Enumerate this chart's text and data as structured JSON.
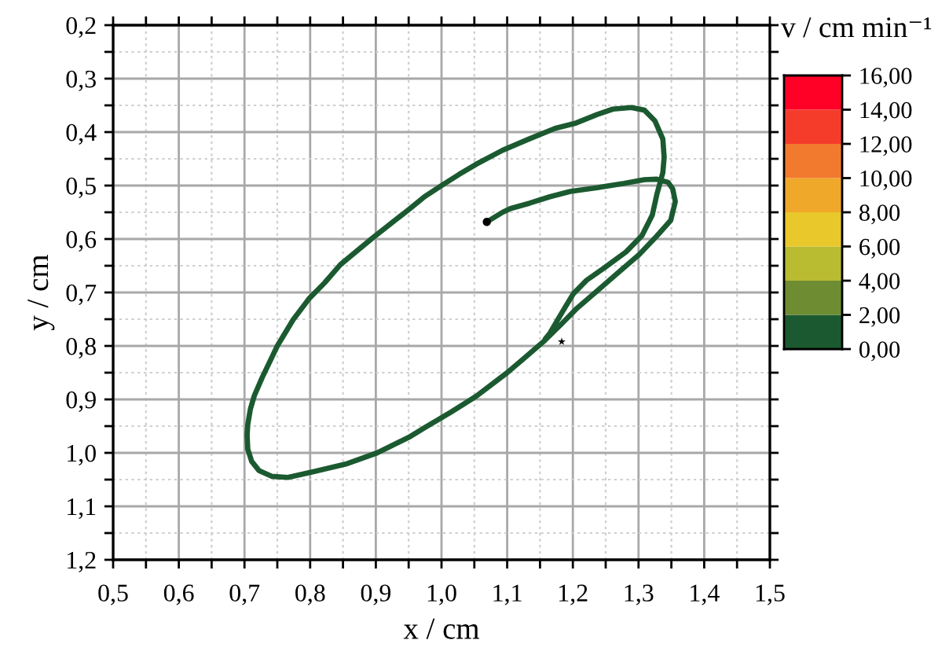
{
  "chart_data": {
    "type": "line",
    "xlabel": "x / cm",
    "ylabel": "y / cm",
    "clabel": "v / cm min⁻¹",
    "xlim": [
      0.5,
      1.5
    ],
    "ylim": [
      1.2,
      0.2
    ],
    "xticks": [
      {
        "value": 0.5,
        "label": "0,5"
      },
      {
        "value": 0.55,
        "label": null
      },
      {
        "value": 0.6,
        "label": "0,6"
      },
      {
        "value": 0.65,
        "label": null
      },
      {
        "value": 0.7,
        "label": "0,7"
      },
      {
        "value": 0.75,
        "label": null
      },
      {
        "value": 0.8,
        "label": "0,8"
      },
      {
        "value": 0.85,
        "label": null
      },
      {
        "value": 0.9,
        "label": "0,9"
      },
      {
        "value": 0.95,
        "label": null
      },
      {
        "value": 1.0,
        "label": "1,0"
      },
      {
        "value": 1.05,
        "label": null
      },
      {
        "value": 1.1,
        "label": "1,1"
      },
      {
        "value": 1.15,
        "label": null
      },
      {
        "value": 1.2,
        "label": "1,2"
      },
      {
        "value": 1.25,
        "label": null
      },
      {
        "value": 1.3,
        "label": "1,3"
      },
      {
        "value": 1.35,
        "label": null
      },
      {
        "value": 1.4,
        "label": "1,4"
      },
      {
        "value": 1.45,
        "label": null
      },
      {
        "value": 1.5,
        "label": "1,5"
      }
    ],
    "yticks": [
      {
        "value": 0.2,
        "label": "0,2"
      },
      {
        "value": 0.25,
        "label": null
      },
      {
        "value": 0.3,
        "label": "0,3"
      },
      {
        "value": 0.35,
        "label": null
      },
      {
        "value": 0.4,
        "label": "0,4"
      },
      {
        "value": 0.45,
        "label": null
      },
      {
        "value": 0.5,
        "label": "0,5"
      },
      {
        "value": 0.55,
        "label": null
      },
      {
        "value": 0.6,
        "label": "0,6"
      },
      {
        "value": 0.65,
        "label": null
      },
      {
        "value": 0.7,
        "label": "0,7"
      },
      {
        "value": 0.75,
        "label": null
      },
      {
        "value": 0.8,
        "label": "0,8"
      },
      {
        "value": 0.85,
        "label": null
      },
      {
        "value": 0.9,
        "label": "0,9"
      },
      {
        "value": 0.95,
        "label": null
      },
      {
        "value": 1.0,
        "label": "1,0"
      },
      {
        "value": 1.05,
        "label": null
      },
      {
        "value": 1.1,
        "label": "1,1"
      },
      {
        "value": 1.15,
        "label": null
      },
      {
        "value": 1.2,
        "label": "1,2"
      }
    ],
    "clim": [
      0,
      16
    ],
    "cticks": [
      {
        "value": 0,
        "label": "0,00"
      },
      {
        "value": 2,
        "label": "2,00"
      },
      {
        "value": 4,
        "label": "4,00"
      },
      {
        "value": 6,
        "label": "6,00"
      },
      {
        "value": 8,
        "label": "8,00"
      },
      {
        "value": 10,
        "label": "10,00"
      },
      {
        "value": 12,
        "label": "12,00"
      },
      {
        "value": 14,
        "label": "14,00"
      },
      {
        "value": 16,
        "label": "16,00"
      }
    ],
    "colors": [
      "#1b5a30",
      "#6e8c32",
      "#b9bb31",
      "#e9c82b",
      "#efa82a",
      "#f27a2e",
      "#f53c2b",
      "#ff0026"
    ],
    "grid": true,
    "series": [
      {
        "color": "#1b5a30",
        "line_style": "solid",
        "marker": "none",
        "x": [
          1.069,
          1.093,
          1.105,
          1.134,
          1.165,
          1.196,
          1.237,
          1.278,
          1.309,
          1.328,
          1.345,
          1.352,
          1.356,
          1.349,
          1.328,
          1.301,
          1.269,
          1.237,
          1.205,
          1.181,
          1.157,
          1.125,
          1.1,
          1.053,
          1.014,
          0.974,
          0.95,
          0.902,
          0.854,
          0.806,
          0.766,
          0.742,
          0.722,
          0.711,
          0.705,
          0.704,
          0.705,
          0.709,
          0.715,
          0.727,
          0.75,
          0.774,
          0.798,
          0.822,
          0.846,
          0.894,
          0.95,
          0.974,
          1.0,
          1.027,
          1.053,
          1.093,
          1.133,
          1.173,
          1.205,
          1.237,
          1.261,
          1.289,
          1.309,
          1.325,
          1.337,
          1.339,
          1.337,
          1.328,
          1.321,
          1.305,
          1.281,
          1.249,
          1.221,
          1.201,
          1.189,
          1.177,
          1.165,
          1.158
        ],
        "values": [
          0.568,
          0.55,
          0.543,
          0.533,
          0.521,
          0.511,
          0.504,
          0.496,
          0.489,
          0.488,
          0.494,
          0.506,
          0.53,
          0.565,
          0.594,
          0.629,
          0.663,
          0.697,
          0.731,
          0.761,
          0.79,
          0.824,
          0.85,
          0.894,
          0.924,
          0.953,
          0.971,
          1.0,
          1.021,
          1.035,
          1.046,
          1.044,
          1.033,
          1.016,
          0.993,
          0.967,
          0.947,
          0.918,
          0.893,
          0.859,
          0.8,
          0.751,
          0.712,
          0.682,
          0.648,
          0.599,
          0.545,
          0.521,
          0.5,
          0.479,
          0.46,
          0.434,
          0.413,
          0.393,
          0.383,
          0.367,
          0.357,
          0.354,
          0.359,
          0.379,
          0.413,
          0.447,
          0.476,
          0.516,
          0.555,
          0.594,
          0.624,
          0.653,
          0.677,
          0.702,
          0.726,
          0.751,
          0.776,
          0.787
        ]
      },
      {
        "type": "scatter",
        "color": "#000000",
        "marker": "circle",
        "x": [
          1.069
        ],
        "values": [
          0.568
        ]
      },
      {
        "type": "scatter",
        "color": "#000000",
        "marker": "star",
        "x": [
          1.183
        ],
        "values": [
          0.792
        ]
      }
    ]
  }
}
